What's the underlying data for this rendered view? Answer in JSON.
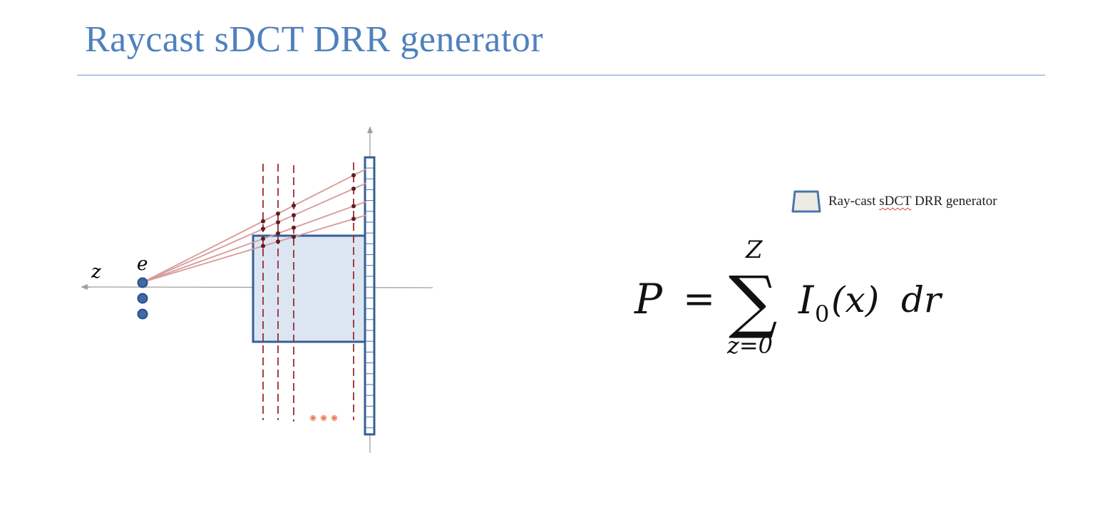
{
  "title": "Raycast sDCT DRR generator",
  "legend": {
    "label_prefix": "Ray-cast ",
    "label_squiggly": "sDCT",
    "label_suffix": " DRR generator",
    "swatch_fill": "#ecebe4",
    "swatch_stroke": "#4a74ad"
  },
  "diagram": {
    "axis_label": "z",
    "source_label": "e"
  },
  "formula": {
    "lhs": "P",
    "equals": "=",
    "sum_symbol": "∑",
    "upper_limit": "Z",
    "lower_limit": "z=0",
    "intensity": "I",
    "subscript": "0",
    "argument": "(x)",
    "differential": "dr"
  },
  "colors": {
    "title": "#4f81bd",
    "detector": "#365f96",
    "volume_fill": "#dce5f2",
    "ray": "#d79a9a",
    "sample_point": "#5e1f1f",
    "slice_line": "#9b2c2c",
    "ellipsis_dots": "#f4a582"
  }
}
